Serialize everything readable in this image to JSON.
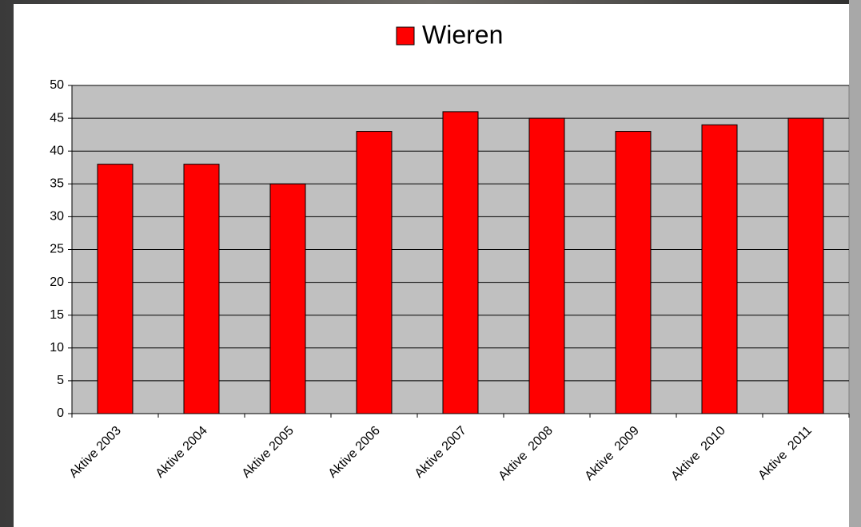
{
  "chart_data": {
    "type": "bar",
    "categories": [
      "Aktive 2003",
      "Aktive 2004",
      "Aktive 2005",
      "Aktive 2006",
      "Aktive 2007",
      "Aktive  2008",
      "Aktive  2009",
      "Aktive  2010",
      "Aktive  2011"
    ],
    "series": [
      {
        "name": "Wieren",
        "color": "#ff0000",
        "values": [
          38,
          38,
          35,
          43,
          46,
          45,
          43,
          44,
          45
        ]
      }
    ],
    "ylim": [
      0,
      50
    ],
    "yticks": [
      0,
      5,
      10,
      15,
      20,
      25,
      30,
      35,
      40,
      45,
      50
    ],
    "grid": true,
    "legend": "top"
  }
}
